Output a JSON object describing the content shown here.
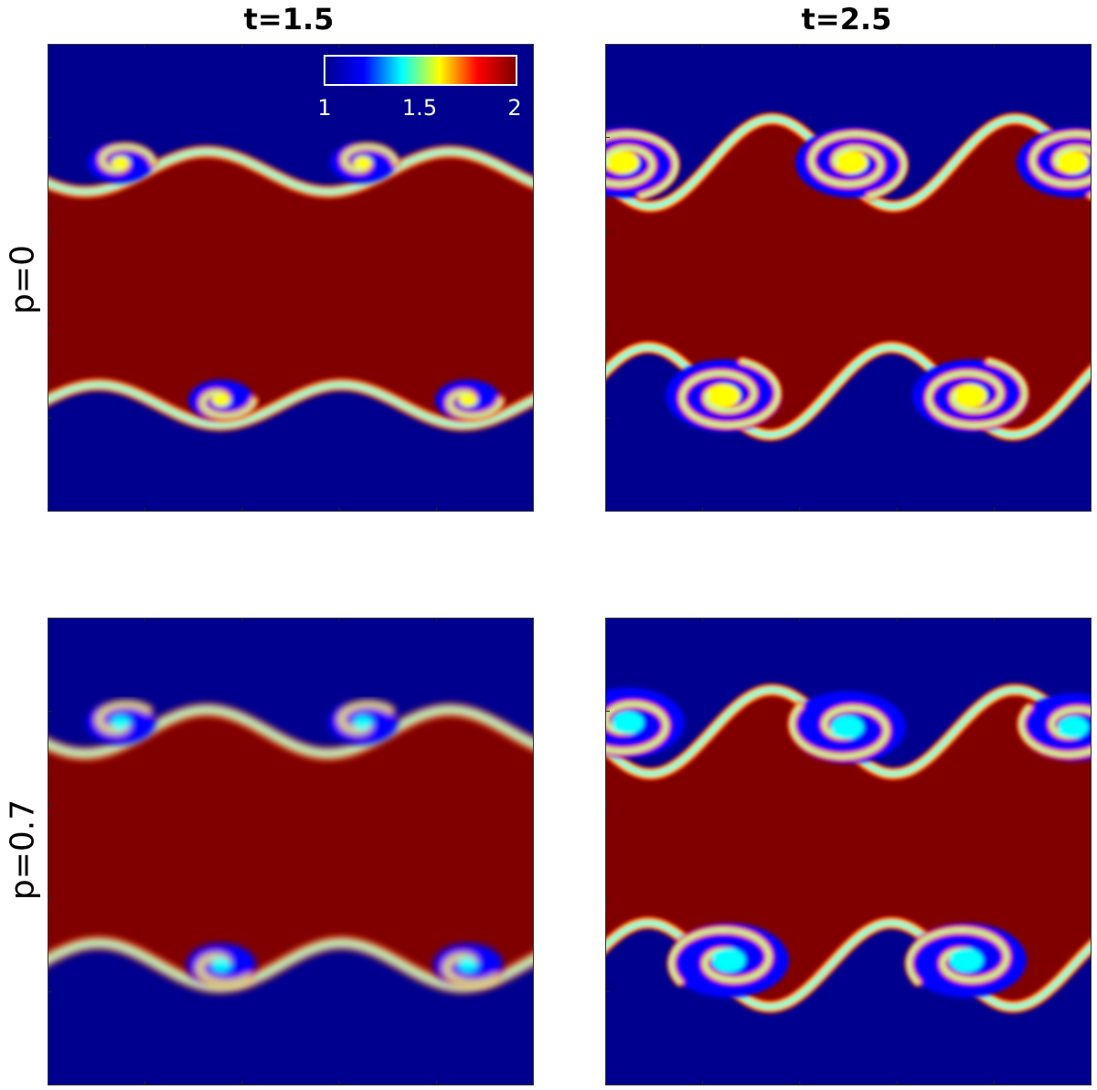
{
  "figure": {
    "column_titles": [
      "t=1.5",
      "t=2.5"
    ],
    "row_labels": [
      "p=0",
      "p=0.7"
    ]
  },
  "colorbar": {
    "colormap": "jet",
    "min": 1,
    "max": 2,
    "tick_labels": [
      "1",
      "1.5",
      "2"
    ],
    "colors": [
      "#00008f",
      "#0000ff",
      "#00ffff",
      "#ffff00",
      "#ff0000",
      "#800000"
    ]
  },
  "chart_data": [
    {
      "type": "heatmap",
      "title": "t=1.5",
      "row": "p=0",
      "field_min": 1,
      "field_max": 2,
      "interfaces": 2,
      "vortices_per_interface": 2,
      "roll_up": "early"
    },
    {
      "type": "heatmap",
      "title": "t=2.5",
      "row": "p=0",
      "field_min": 1,
      "field_max": 2,
      "interfaces": 2,
      "vortices_per_interface": 2,
      "roll_up": "rolled"
    },
    {
      "type": "heatmap",
      "title": "t=1.5",
      "row": "p=0.7",
      "field_min": 1,
      "field_max": 2,
      "interfaces": 2,
      "vortices_per_interface": 2,
      "roll_up": "early-diffuse"
    },
    {
      "type": "heatmap",
      "title": "t=2.5",
      "row": "p=0.7",
      "field_min": 1,
      "field_max": 2,
      "interfaces": 2,
      "vortices_per_interface": 2,
      "roll_up": "rolled-mixed"
    }
  ]
}
